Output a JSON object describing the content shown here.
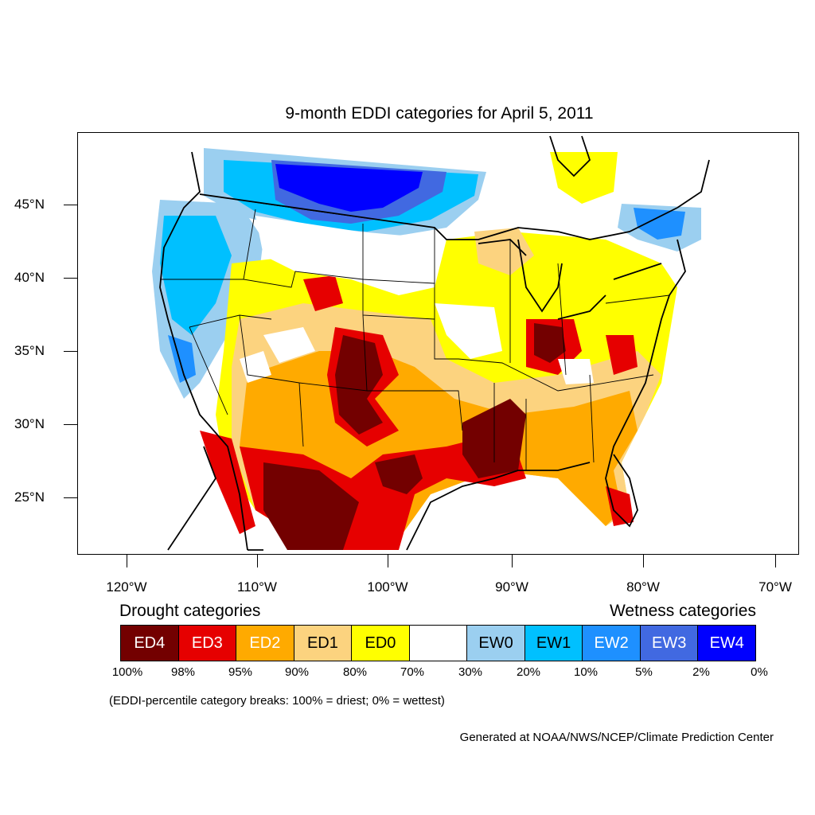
{
  "title": "9-month EDDI categories for April 5, 2011",
  "axes": {
    "lat_labels": [
      "45°N",
      "40°N",
      "35°N",
      "30°N",
      "25°N"
    ],
    "lon_labels": [
      "120°W",
      "110°W",
      "100°W",
      "90°W",
      "80°W",
      "70°W"
    ]
  },
  "legend": {
    "drought_title": "Drought categories",
    "wetness_title": "Wetness categories",
    "categories": [
      {
        "label": "ED4",
        "color": "#730000",
        "text_color": "#ffffff"
      },
      {
        "label": "ED3",
        "color": "#e60000",
        "text_color": "#ffffff"
      },
      {
        "label": "ED2",
        "color": "#ffaa00",
        "text_color": "#ffffff"
      },
      {
        "label": "ED1",
        "color": "#fcd37f",
        "text_color": "#000000"
      },
      {
        "label": "ED0",
        "color": "#ffff00",
        "text_color": "#000000"
      },
      {
        "label": "",
        "color": "#ffffff",
        "text_color": "#000000"
      },
      {
        "label": "EW0",
        "color": "#9bcff0",
        "text_color": "#000000"
      },
      {
        "label": "EW1",
        "color": "#00c0ff",
        "text_color": "#000000"
      },
      {
        "label": "EW2",
        "color": "#1e90ff",
        "text_color": "#ffffff"
      },
      {
        "label": "EW3",
        "color": "#4169e1",
        "text_color": "#ffffff"
      },
      {
        "label": "EW4",
        "color": "#0000ff",
        "text_color": "#ffffff"
      }
    ],
    "percentiles": [
      "100%",
      "98%",
      "95%",
      "90%",
      "80%",
      "70%",
      "30%",
      "20%",
      "10%",
      "5%",
      "2%",
      "0%"
    ]
  },
  "note": "(EDDI-percentile category breaks: 100% = driest; 0% = wettest)",
  "credit": "Generated at NOAA/NWS/NCEP/Climate Prediction Center"
}
